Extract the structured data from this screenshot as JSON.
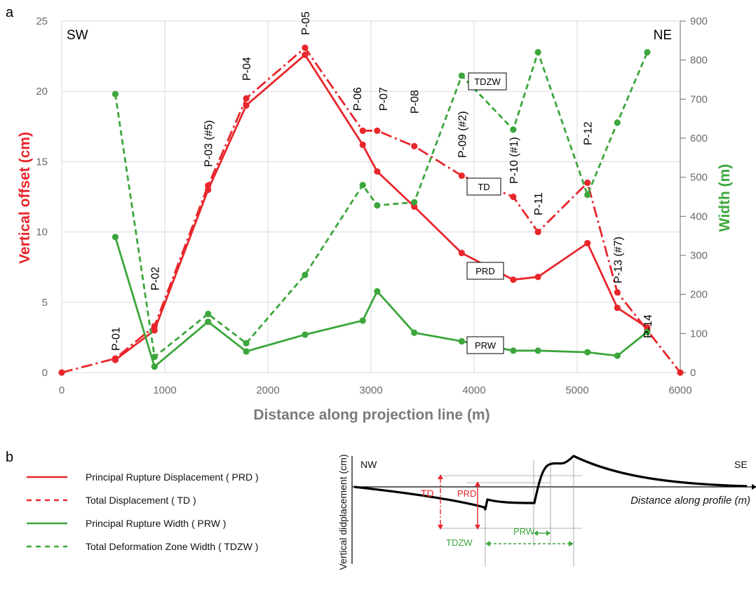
{
  "panel_a": {
    "letter": "a",
    "corner_left": "SW",
    "corner_right": "NE"
  },
  "panel_b": {
    "letter": "b",
    "legend": [
      {
        "label": "Principal Rupture Displacement ( PRD )",
        "color": "#e8262b",
        "style": "solid"
      },
      {
        "label": "Total Displacement ( TD )",
        "color": "#e8262b",
        "style": "dashed"
      },
      {
        "label": "Principal Rupture Width ( PRW )",
        "color": "#3ca63c",
        "style": "solid"
      },
      {
        "label": "Total Deformation Zone Width ( TDZW )",
        "color": "#3ca63c",
        "style": "dashed"
      }
    ],
    "diagram": {
      "left_dir": "NW",
      "right_dir": "SE",
      "ylabel": "Vertical didplacement (cm)",
      "xlabel": "Distance along profile (m)",
      "td_label": "TD",
      "prd_label": "PRD",
      "prw_label": "PRW",
      "tdzw_label": "TDZW"
    }
  },
  "chart_data": {
    "type": "line",
    "xlabel": "Distance along projection line (m)",
    "ylabel": "Vertical offset (cm)",
    "y2label": "Width (m)",
    "xlim": [
      0,
      6000
    ],
    "ylim": [
      0,
      25
    ],
    "y2lim": [
      0,
      900
    ],
    "x_ticks": [
      0,
      1000,
      2000,
      3000,
      4000,
      5000,
      6000
    ],
    "y_ticks": [
      0,
      5,
      10,
      15,
      20,
      25
    ],
    "y2_ticks": [
      0,
      100,
      200,
      300,
      400,
      500,
      600,
      700,
      800,
      900
    ],
    "grid": true,
    "colors": {
      "red": "#e8262b",
      "green": "#3ca63c",
      "y_title": "#e8262b",
      "y2_title": "#3ca63c"
    },
    "series": [
      {
        "name": "TD",
        "axis": "left",
        "color": "#e8262b",
        "style": "dashdot",
        "points": [
          [
            0,
            0
          ],
          [
            520,
            1.0
          ],
          [
            900,
            3.3
          ],
          [
            1420,
            13.3
          ],
          [
            1790,
            19.5
          ],
          [
            2360,
            23.1
          ],
          [
            2920,
            17.2
          ],
          [
            3060,
            17.2
          ],
          [
            3420,
            16.1
          ],
          [
            3880,
            14.0
          ],
          [
            4380,
            12.5
          ],
          [
            4620,
            10.0
          ],
          [
            5100,
            13.5
          ],
          [
            5390,
            5.7
          ],
          [
            5680,
            3.0
          ],
          [
            6000,
            0
          ]
        ]
      },
      {
        "name": "PRD",
        "axis": "left",
        "color": "#e8262b",
        "style": "solid",
        "points": [
          [
            520,
            0.9
          ],
          [
            900,
            3.0
          ],
          [
            1420,
            13.0
          ],
          [
            1790,
            19.0
          ],
          [
            2360,
            22.6
          ],
          [
            2920,
            16.2
          ],
          [
            3060,
            14.3
          ],
          [
            3420,
            11.8
          ],
          [
            3880,
            8.5
          ],
          [
            4380,
            6.6
          ],
          [
            4620,
            6.8
          ],
          [
            5100,
            9.2
          ],
          [
            5390,
            4.6
          ],
          [
            5680,
            3.2
          ]
        ]
      },
      {
        "name": "TDZW",
        "axis": "right",
        "color": "#3ca63c",
        "style": "dashed",
        "points": [
          [
            520,
            713
          ],
          [
            900,
            40
          ],
          [
            1420,
            150
          ],
          [
            1790,
            75
          ],
          [
            2360,
            250
          ],
          [
            2920,
            480
          ],
          [
            3060,
            428
          ],
          [
            3420,
            436
          ],
          [
            3880,
            760
          ],
          [
            4380,
            622
          ],
          [
            4620,
            820
          ],
          [
            5100,
            455
          ],
          [
            5390,
            640
          ],
          [
            5680,
            820
          ]
        ]
      },
      {
        "name": "PRW",
        "axis": "right",
        "color": "#3ca63c",
        "style": "solid",
        "points": [
          [
            520,
            347
          ],
          [
            900,
            15
          ],
          [
            1420,
            130
          ],
          [
            1790,
            54
          ],
          [
            2360,
            97
          ],
          [
            2920,
            133
          ],
          [
            3060,
            208
          ],
          [
            3420,
            102
          ],
          [
            3880,
            80
          ],
          [
            4380,
            56
          ],
          [
            4620,
            56
          ],
          [
            5100,
            52
          ],
          [
            5390,
            43
          ],
          [
            5680,
            104
          ]
        ]
      }
    ],
    "point_labels": [
      {
        "text": "P-01",
        "x": 520
      },
      {
        "text": "P-02",
        "x": 900
      },
      {
        "text": "P-03 (#5)",
        "x": 1420
      },
      {
        "text": "P-04",
        "x": 1790
      },
      {
        "text": "P-05",
        "x": 2360
      },
      {
        "text": "P-06",
        "x": 2920
      },
      {
        "text": "P-07",
        "x": 3060
      },
      {
        "text": "P-08",
        "x": 3420
      },
      {
        "text": "P-09 (#2)",
        "x": 3880
      },
      {
        "text": "P-10 (#1)",
        "x": 4380
      },
      {
        "text": "P-11",
        "x": 4620
      },
      {
        "text": "P-12",
        "x": 5100
      },
      {
        "text": "P-13 (#7)",
        "x": 5390
      },
      {
        "text": "P-14",
        "x": 5680
      }
    ],
    "series_boxes": [
      "TDZW",
      "TD",
      "PRD",
      "PRW"
    ]
  }
}
